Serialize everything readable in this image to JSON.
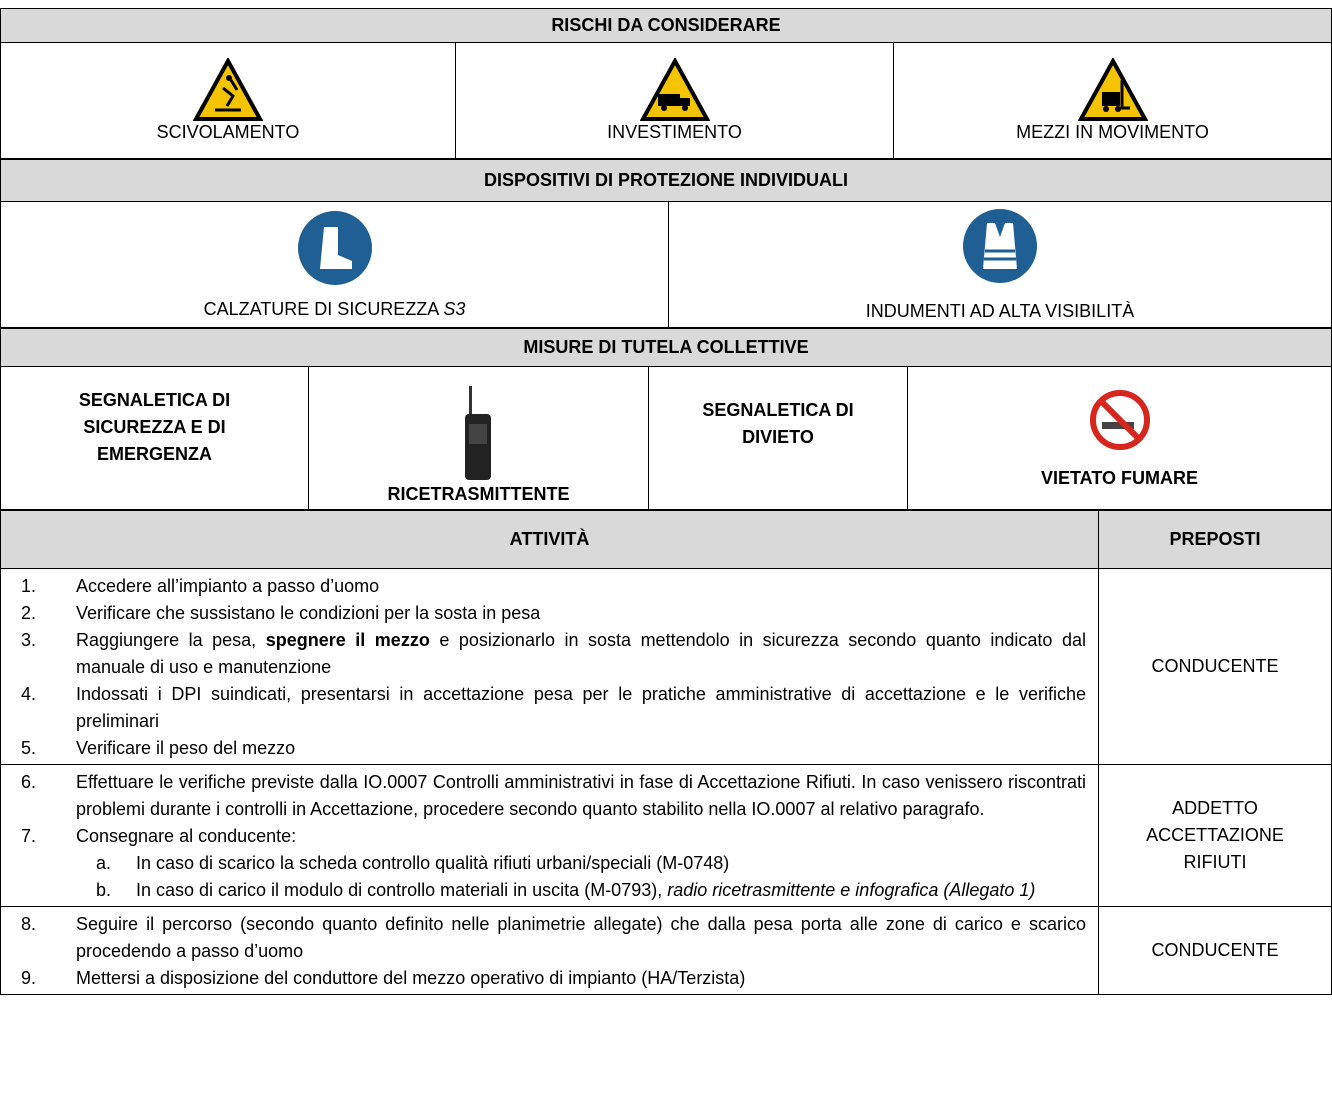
{
  "risks": {
    "title": "RISCHI DA CONSIDERARE",
    "items": [
      "SCIVOLAMENTO",
      "INVESTIMENTO",
      "MEZZI IN MOVIMENTO"
    ]
  },
  "ppe": {
    "title": "DISPOSITIVI DI PROTEZIONE INDIVIDUALI",
    "items": [
      {
        "label": "CALZATURE DI SICUREZZA",
        "class": "S3"
      },
      {
        "label": "INDUMENTI AD ALTA VISIBILITÀ"
      }
    ]
  },
  "collective": {
    "title": "MISURE DI TUTELA COLLETTIVE",
    "items": [
      "SEGNALETICA DI SICUREZZA E DI EMERGENZA",
      "RICETRASMITTENTE",
      "SEGNALETICA DI DIVIETO",
      "VIETATO FUMARE"
    ]
  },
  "activities": {
    "headers": [
      "ATTIVITÀ",
      "PREPOSTI"
    ],
    "groups": [
      {
        "steps": [
          {
            "number": "1.",
            "text": "Accedere all’impianto a passo d’uomo"
          },
          {
            "number": "2.",
            "text": "Verificare che sussistano le condizioni per la sosta in pesa"
          },
          {
            "number": "3.",
            "text": "Raggiungere la pesa,",
            "emphasis": "spegnere il mezzo",
            "text_after": "e posizionarlo in sosta mettendolo in sicurezza secondo quanto indicato dal manuale di uso e manutenzione"
          },
          {
            "number": "4.",
            "text": "Indossati i DPI suindicati, presentarsi in accettazione pesa per le pratiche amministrative di accettazione e le verifiche preliminari"
          },
          {
            "number": "5.",
            "text": "Verificare il peso del mezzo"
          }
        ],
        "responsible": "CONDUCENTE"
      },
      {
        "steps": [
          {
            "number": "6.",
            "text": "Effettuare le verifiche previste dalla IO.0007 Controlli amministrativi in fase di Accettazione Rifiuti. In caso venissero riscontrati problemi durante i controlli in Accettazione, procedere secondo quanto stabilito nella IO.0007 al relativo paragrafo."
          },
          {
            "number": "7.",
            "text": "Consegnare al conducente:",
            "substeps": [
              {
                "letter": "a.",
                "text": "In caso di scarico la scheda controllo qualità rifiuti urbani/speciali (M-0748)"
              },
              {
                "letter": "b.",
                "text": "In caso di carico il modulo di controllo materiali in uscita (M-0793),",
                "italic": "radio ricetrasmittente e infografica (Allegato 1)"
              }
            ]
          }
        ],
        "responsible": "ADDETTO ACCETTAZIONE RIFIUTI"
      },
      {
        "steps": [
          {
            "number": "8.",
            "text": "Seguire il percorso (secondo quanto definito nelle planimetrie allegate) che dalla pesa porta alle zone di carico e scarico procedendo a passo d’uomo"
          },
          {
            "number": "9.",
            "text": "Mettersi a disposizione del conduttore del mezzo operativo di impianto (HA/Terzista)"
          }
        ],
        "responsible": "CONDUCENTE"
      }
    ]
  }
}
